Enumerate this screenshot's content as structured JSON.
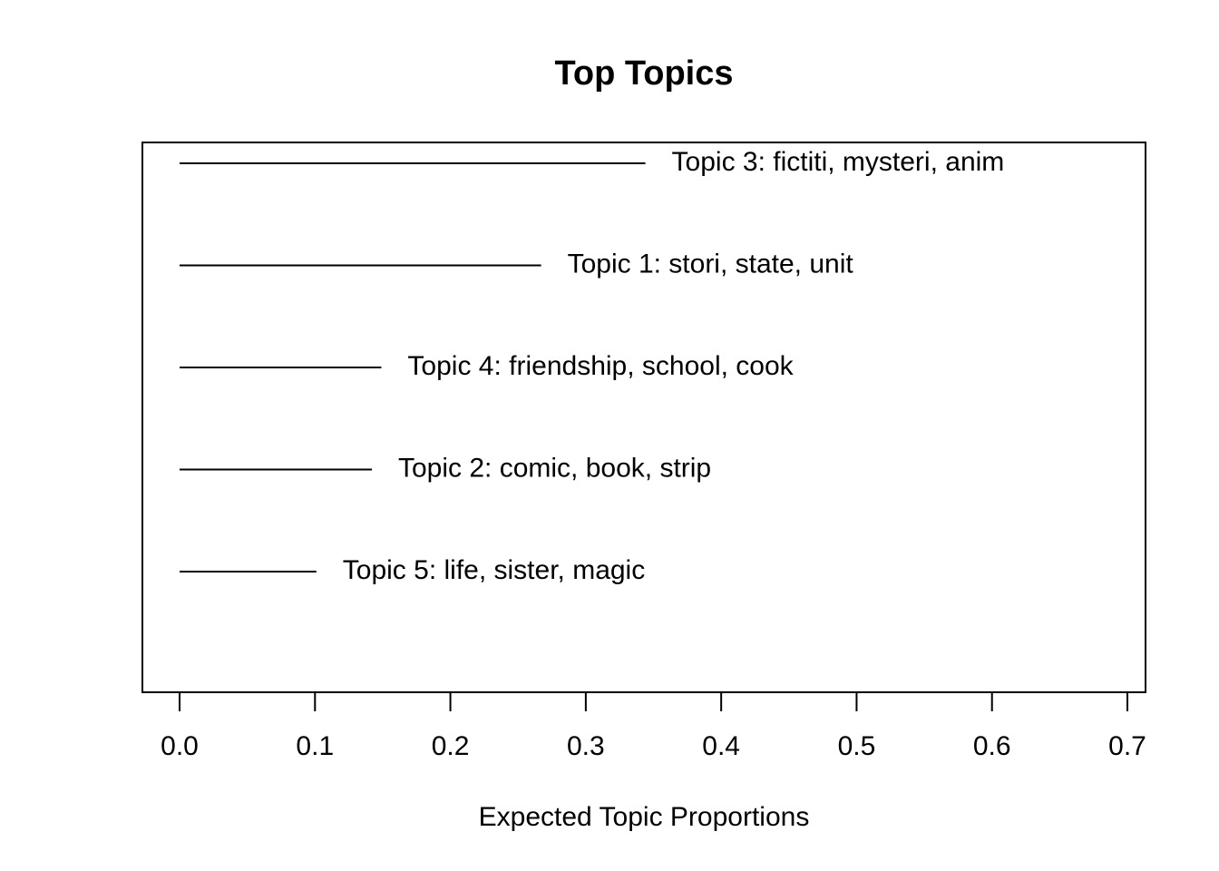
{
  "chart_data": {
    "type": "bar",
    "orientation": "horizontal",
    "title": "Top Topics",
    "xlabel": "Expected Topic Proportions",
    "ylabel": "",
    "xlim": [
      0.0,
      0.7
    ],
    "x_ticks": [
      "0.0",
      "0.1",
      "0.2",
      "0.3",
      "0.4",
      "0.5",
      "0.6",
      "0.7"
    ],
    "grid": false,
    "legend": "none",
    "categories": [
      "Topic 3: fictiti, mysteri, anim",
      "Topic 1: stori, state, unit",
      "Topic 4: friendship, school, cook",
      "Topic 2: comic, book, strip",
      "Topic 5: life, sister, magic"
    ],
    "values": [
      0.344,
      0.267,
      0.149,
      0.142,
      0.101
    ],
    "line_color": "#000000"
  }
}
